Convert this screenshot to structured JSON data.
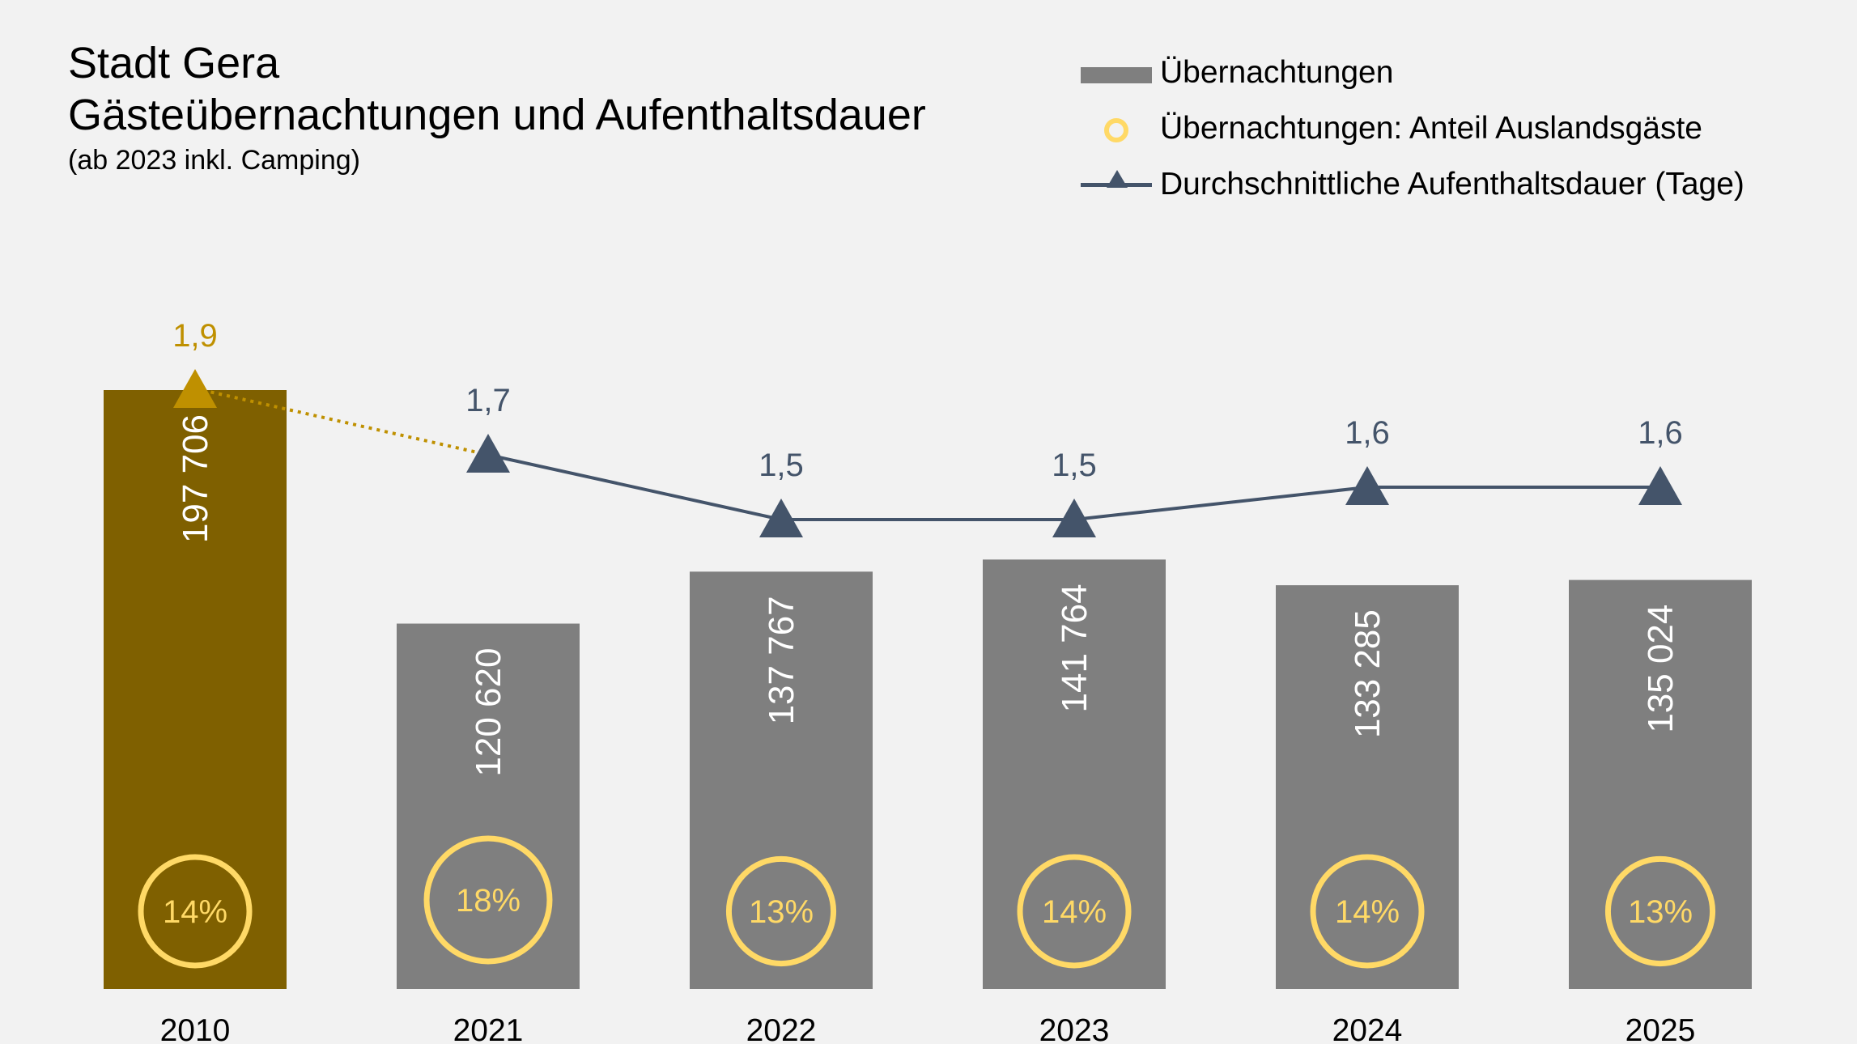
{
  "title": {
    "line1": "Stadt Gera",
    "line2": "Gästeübernachtungen und Aufenthaltsdauer",
    "subtitle": "(ab 2023 inkl. Camping)"
  },
  "legend": {
    "bars": "Übernachtungen",
    "circles": "Übernachtungen: Anteil Auslandsgäste",
    "line": "Durchschnittliche Aufenthaltsdauer (Tage)"
  },
  "colors": {
    "bar": "#7f7f7f",
    "bar_highlight": "#7f6000",
    "circle": "#ffd966",
    "line": "#44546a",
    "line_highlight": "#bf9000",
    "background": "#f2f2f2"
  },
  "chart_data": {
    "type": "bar",
    "categories": [
      "2010",
      "2021",
      "2022",
      "2023",
      "2024",
      "2025"
    ],
    "series": [
      {
        "name": "Übernachtungen",
        "values": [
          197706,
          120620,
          137767,
          141764,
          133285,
          135024
        ],
        "labels": [
          "197 706",
          "120 620",
          "137 767",
          "141 764",
          "133 285",
          "135 024"
        ]
      },
      {
        "name": "Übernachtungen: Anteil Auslandsgäste",
        "type": "bubble",
        "values": [
          14,
          18,
          13,
          14,
          14,
          13
        ],
        "labels": [
          "14%",
          "18%",
          "13%",
          "14%",
          "14%",
          "13%"
        ]
      },
      {
        "name": "Durchschnittliche Aufenthaltsdauer (Tage)",
        "type": "line",
        "values": [
          1.9,
          1.7,
          1.5,
          1.5,
          1.6,
          1.6
        ],
        "labels": [
          "1,9",
          "1,7",
          "1,5",
          "1,5",
          "1,6",
          "1,6"
        ]
      }
    ],
    "legend_position": "top-right",
    "grid": false
  }
}
